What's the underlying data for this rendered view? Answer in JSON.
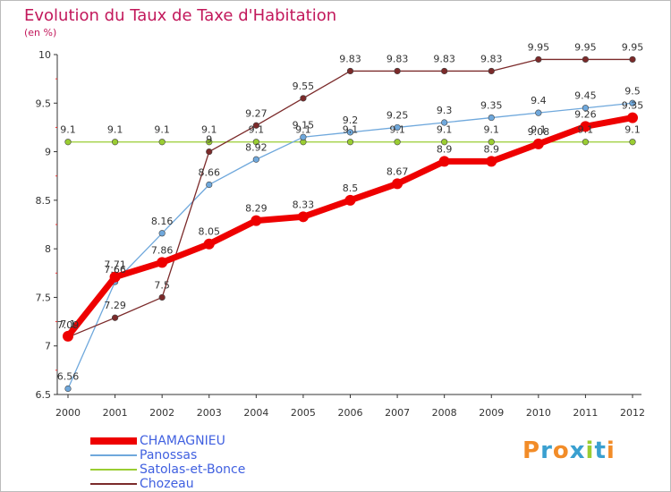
{
  "title": "Evolution du Taux de Taxe d'Habitation",
  "unit": "(en %)",
  "brand": {
    "chars": [
      "P",
      "r",
      "o",
      "x",
      "i",
      "t",
      "i"
    ],
    "colors": [
      "#f28c28",
      "#3aa0d0",
      "#f28c28",
      "#3aa0d0",
      "#9acd32",
      "#3aa0d0",
      "#f28c28"
    ]
  },
  "chart_data": {
    "type": "line",
    "title": "Evolution du Taux de Taxe d'Habitation",
    "ylabel": "(en %)",
    "x": [
      "2000",
      "2001",
      "2002",
      "2003",
      "2004",
      "2005",
      "2006",
      "2007",
      "2008",
      "2009",
      "2010",
      "2011",
      "2012"
    ],
    "ylim": [
      6.5,
      10
    ],
    "yticks": [
      "6.5",
      "7",
      "7.5",
      "8",
      "8.5",
      "9",
      "9.5",
      "10"
    ],
    "grid": false,
    "legend": "bottom-left",
    "series": [
      {
        "name": "CHAMAGNIEU",
        "color": "#ee0000",
        "values": [
          7.1,
          7.71,
          7.86,
          8.05,
          8.29,
          8.33,
          8.5,
          8.67,
          8.9,
          8.9,
          9.08,
          9.26,
          9.35
        ],
        "labels": [
          "7.1",
          "7.71",
          "7.86",
          "8.05",
          "8.29",
          "8.33",
          "8.5",
          "8.67",
          "8.9",
          "8.9",
          "9.08",
          "9.26",
          "9.35"
        ]
      },
      {
        "name": "Panossas",
        "color": "#6fa8dc",
        "values": [
          6.56,
          7.66,
          8.16,
          8.66,
          8.92,
          9.15,
          9.2,
          9.25,
          9.3,
          9.35,
          9.4,
          9.45,
          9.5
        ],
        "labels": [
          "6.56",
          "7.66",
          "8.16",
          "8.66",
          "8.92",
          "9.15",
          "9.2",
          "9.25",
          "9.3",
          "9.35",
          "9.4",
          "9.45",
          "9.5"
        ]
      },
      {
        "name": "Satolas-et-Bonce",
        "color": "#9acd32",
        "values": [
          9.1,
          9.1,
          9.1,
          9.1,
          9.1,
          9.1,
          9.1,
          9.1,
          9.1,
          9.1,
          9.1,
          9.1,
          9.1
        ],
        "labels": [
          "9.1",
          "9.1",
          "9.1",
          "9.1",
          "9.1",
          "9.1",
          "9.1",
          "9.1",
          "9.1",
          "9.1",
          "9.1",
          "9.1",
          "9.1"
        ]
      },
      {
        "name": "Chozeau",
        "color": "#7b2a2a",
        "values": [
          7.09,
          7.29,
          7.5,
          9.0,
          9.27,
          9.55,
          9.83,
          9.83,
          9.83,
          9.83,
          9.95,
          9.95,
          9.95
        ],
        "labels": [
          "7.09",
          "7.29",
          "7.5",
          "9",
          "9.27",
          "9.55",
          "9.83",
          "9.83",
          "9.83",
          "9.83",
          "9.95",
          "9.95",
          "9.95"
        ]
      }
    ]
  }
}
